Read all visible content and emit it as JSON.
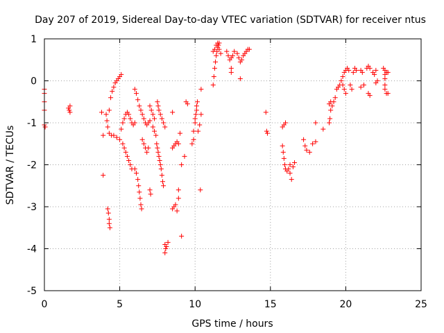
{
  "chart_data": {
    "type": "scatter",
    "title": "Day 207 of 2019, Sidereal Day-to-day VTEC variation (SDTVAR) for receiver ntus",
    "xlabel": "GPS time / hours",
    "ylabel": "SDTVAR / TECUs",
    "xlim": [
      0,
      25
    ],
    "ylim": [
      -5,
      1
    ],
    "xticks": [
      0,
      5,
      10,
      15,
      20,
      25
    ],
    "yticks": [
      -5,
      -4,
      -3,
      -2,
      -1,
      0,
      1
    ],
    "grid": true,
    "marker": "+",
    "color": "#ff0000",
    "series": [
      {
        "name": "SDTVAR",
        "points": [
          [
            0.0,
            -0.2
          ],
          [
            0.0,
            -0.3
          ],
          [
            0.0,
            -0.5
          ],
          [
            0.0,
            -0.7
          ],
          [
            0.0,
            -1.05
          ],
          [
            0.05,
            -1.1
          ],
          [
            1.6,
            -0.65
          ],
          [
            1.65,
            -0.7
          ],
          [
            1.7,
            -0.6
          ],
          [
            1.7,
            -0.75
          ],
          [
            3.8,
            -0.75
          ],
          [
            3.9,
            -1.3
          ],
          [
            3.9,
            -2.25
          ],
          [
            4.2,
            -3.05
          ],
          [
            4.25,
            -3.15
          ],
          [
            4.3,
            -3.3
          ],
          [
            4.3,
            -3.4
          ],
          [
            4.35,
            -3.5
          ],
          [
            4.1,
            -0.8
          ],
          [
            4.15,
            -0.95
          ],
          [
            4.2,
            -1.1
          ],
          [
            4.3,
            -1.25
          ],
          [
            4.45,
            -1.3
          ],
          [
            4.3,
            -0.7
          ],
          [
            4.4,
            -0.4
          ],
          [
            4.5,
            -0.25
          ],
          [
            4.6,
            -0.15
          ],
          [
            4.7,
            -0.05
          ],
          [
            4.8,
            0.0
          ],
          [
            4.9,
            0.05
          ],
          [
            5.0,
            0.1
          ],
          [
            5.1,
            0.15
          ],
          [
            4.6,
            -1.3
          ],
          [
            4.8,
            -1.35
          ],
          [
            5.0,
            -1.4
          ],
          [
            5.2,
            -1.5
          ],
          [
            5.3,
            -1.6
          ],
          [
            5.4,
            -1.7
          ],
          [
            5.5,
            -1.8
          ],
          [
            5.6,
            -1.9
          ],
          [
            5.7,
            -2.0
          ],
          [
            5.8,
            -2.1
          ],
          [
            6.0,
            -2.1
          ],
          [
            6.1,
            -2.2
          ],
          [
            6.2,
            -2.35
          ],
          [
            6.25,
            -2.5
          ],
          [
            6.3,
            -2.65
          ],
          [
            6.35,
            -2.8
          ],
          [
            6.4,
            -2.95
          ],
          [
            6.45,
            -3.05
          ],
          [
            5.1,
            -1.15
          ],
          [
            5.2,
            -1.0
          ],
          [
            5.3,
            -0.9
          ],
          [
            5.4,
            -0.8
          ],
          [
            5.5,
            -0.75
          ],
          [
            5.6,
            -0.8
          ],
          [
            5.7,
            -0.9
          ],
          [
            5.8,
            -1.0
          ],
          [
            5.9,
            -1.05
          ],
          [
            6.0,
            -1.0
          ],
          [
            6.0,
            -0.2
          ],
          [
            6.1,
            -0.3
          ],
          [
            6.2,
            -0.45
          ],
          [
            6.3,
            -0.6
          ],
          [
            6.4,
            -0.7
          ],
          [
            6.5,
            -0.8
          ],
          [
            6.6,
            -0.9
          ],
          [
            6.7,
            -1.0
          ],
          [
            6.8,
            -1.05
          ],
          [
            6.9,
            -1.0
          ],
          [
            7.0,
            -0.95
          ],
          [
            6.5,
            -1.4
          ],
          [
            6.6,
            -1.5
          ],
          [
            6.7,
            -1.6
          ],
          [
            6.8,
            -1.7
          ],
          [
            6.9,
            -1.6
          ],
          [
            7.0,
            -2.6
          ],
          [
            7.05,
            -2.7
          ],
          [
            7.0,
            -0.6
          ],
          [
            7.1,
            -0.7
          ],
          [
            7.2,
            -0.8
          ],
          [
            7.3,
            -0.9
          ],
          [
            7.2,
            -1.1
          ],
          [
            7.3,
            -1.2
          ],
          [
            7.4,
            -1.3
          ],
          [
            7.45,
            -1.5
          ],
          [
            7.5,
            -1.6
          ],
          [
            7.55,
            -1.7
          ],
          [
            7.6,
            -1.8
          ],
          [
            7.65,
            -1.9
          ],
          [
            7.7,
            -2.0
          ],
          [
            7.75,
            -2.1
          ],
          [
            7.8,
            -2.25
          ],
          [
            7.85,
            -2.4
          ],
          [
            7.9,
            -2.5
          ],
          [
            7.5,
            -0.5
          ],
          [
            7.55,
            -0.6
          ],
          [
            7.6,
            -0.7
          ],
          [
            7.7,
            -0.8
          ],
          [
            7.8,
            -0.9
          ],
          [
            7.9,
            -1.0
          ],
          [
            8.0,
            -1.1
          ],
          [
            8.0,
            -3.9
          ],
          [
            8.05,
            -4.0
          ],
          [
            8.0,
            -4.1
          ],
          [
            8.1,
            -3.95
          ],
          [
            8.2,
            -3.85
          ],
          [
            8.5,
            -3.05
          ],
          [
            8.6,
            -3.0
          ],
          [
            8.7,
            -2.95
          ],
          [
            8.8,
            -3.1
          ],
          [
            8.9,
            -2.8
          ],
          [
            8.9,
            -2.6
          ],
          [
            8.5,
            -1.6
          ],
          [
            8.6,
            -1.55
          ],
          [
            8.7,
            -1.5
          ],
          [
            8.8,
            -1.45
          ],
          [
            8.9,
            -1.5
          ],
          [
            8.5,
            -0.75
          ],
          [
            9.1,
            -3.7
          ],
          [
            9.0,
            -1.25
          ],
          [
            9.1,
            -2.0
          ],
          [
            9.3,
            -1.8
          ],
          [
            9.4,
            -0.5
          ],
          [
            9.5,
            -0.55
          ],
          [
            9.8,
            -1.5
          ],
          [
            9.9,
            -1.4
          ],
          [
            9.9,
            -1.2
          ],
          [
            10.0,
            -1.0
          ],
          [
            10.0,
            -0.9
          ],
          [
            10.05,
            -0.8
          ],
          [
            10.1,
            -0.7
          ],
          [
            10.1,
            -0.6
          ],
          [
            10.15,
            -0.5
          ],
          [
            10.2,
            -1.2
          ],
          [
            10.3,
            -1.05
          ],
          [
            10.4,
            -0.8
          ],
          [
            10.4,
            -0.2
          ],
          [
            10.35,
            -2.6
          ],
          [
            11.2,
            -0.1
          ],
          [
            11.25,
            0.1
          ],
          [
            11.3,
            0.3
          ],
          [
            11.35,
            0.45
          ],
          [
            11.4,
            0.6
          ],
          [
            11.45,
            0.7
          ],
          [
            11.5,
            0.8
          ],
          [
            11.55,
            0.85
          ],
          [
            11.6,
            0.9
          ],
          [
            11.2,
            0.7
          ],
          [
            11.3,
            0.75
          ],
          [
            11.4,
            0.85
          ],
          [
            11.5,
            0.9
          ],
          [
            11.6,
            0.75
          ],
          [
            11.7,
            0.65
          ],
          [
            12.1,
            0.7
          ],
          [
            12.2,
            0.6
          ],
          [
            12.3,
            0.5
          ],
          [
            12.4,
            0.55
          ],
          [
            12.5,
            0.6
          ],
          [
            12.6,
            0.7
          ],
          [
            12.4,
            0.3
          ],
          [
            12.4,
            0.2
          ],
          [
            12.8,
            0.65
          ],
          [
            12.9,
            0.55
          ],
          [
            13.0,
            0.45
          ],
          [
            13.1,
            0.5
          ],
          [
            13.2,
            0.6
          ],
          [
            13.3,
            0.65
          ],
          [
            13.4,
            0.7
          ],
          [
            13.5,
            0.75
          ],
          [
            13.6,
            0.75
          ],
          [
            13.0,
            0.05
          ],
          [
            14.7,
            -0.75
          ],
          [
            14.75,
            -1.2
          ],
          [
            14.8,
            -1.25
          ],
          [
            15.8,
            -1.1
          ],
          [
            15.9,
            -1.05
          ],
          [
            16.0,
            -1.0
          ],
          [
            15.8,
            -1.55
          ],
          [
            15.85,
            -1.7
          ],
          [
            15.9,
            -1.85
          ],
          [
            15.95,
            -2.0
          ],
          [
            16.0,
            -2.1
          ],
          [
            16.1,
            -2.15
          ],
          [
            16.2,
            -2.1
          ],
          [
            16.3,
            -2.0
          ],
          [
            16.3,
            -2.2
          ],
          [
            16.4,
            -2.35
          ],
          [
            16.5,
            -2.05
          ],
          [
            16.6,
            -1.95
          ],
          [
            17.2,
            -1.4
          ],
          [
            17.3,
            -1.55
          ],
          [
            17.4,
            -1.65
          ],
          [
            17.6,
            -1.7
          ],
          [
            17.8,
            -1.5
          ],
          [
            18.0,
            -1.45
          ],
          [
            18.0,
            -1.0
          ],
          [
            18.5,
            -1.15
          ],
          [
            18.9,
            -1.0
          ],
          [
            18.95,
            -0.9
          ],
          [
            19.0,
            -0.7
          ],
          [
            19.1,
            -0.6
          ],
          [
            19.2,
            -0.5
          ],
          [
            19.3,
            -0.4
          ],
          [
            18.9,
            -0.55
          ],
          [
            19.0,
            -0.5
          ],
          [
            19.4,
            -0.2
          ],
          [
            19.5,
            -0.15
          ],
          [
            19.6,
            -0.1
          ],
          [
            19.7,
            0.0
          ],
          [
            19.8,
            0.1
          ],
          [
            19.9,
            0.2
          ],
          [
            20.0,
            0.25
          ],
          [
            20.1,
            0.3
          ],
          [
            20.2,
            0.25
          ],
          [
            19.8,
            -0.1
          ],
          [
            19.9,
            -0.2
          ],
          [
            20.0,
            -0.3
          ],
          [
            20.3,
            -0.1
          ],
          [
            20.4,
            -0.2
          ],
          [
            20.5,
            0.2
          ],
          [
            20.6,
            0.3
          ],
          [
            20.7,
            0.25
          ],
          [
            21.0,
            0.25
          ],
          [
            21.1,
            0.2
          ],
          [
            21.0,
            -0.15
          ],
          [
            21.2,
            -0.1
          ],
          [
            21.4,
            0.3
          ],
          [
            21.5,
            0.35
          ],
          [
            21.6,
            0.3
          ],
          [
            21.5,
            -0.3
          ],
          [
            21.6,
            -0.35
          ],
          [
            21.8,
            0.2
          ],
          [
            21.9,
            0.15
          ],
          [
            22.0,
            -0.05
          ],
          [
            22.1,
            0.0
          ],
          [
            22.0,
            0.25
          ],
          [
            22.5,
            0.3
          ],
          [
            22.6,
            0.25
          ],
          [
            22.7,
            0.2
          ],
          [
            22.6,
            0.15
          ],
          [
            22.6,
            0.05
          ],
          [
            22.6,
            -0.1
          ],
          [
            22.6,
            -0.2
          ],
          [
            22.7,
            -0.3
          ],
          [
            22.8,
            -0.3
          ],
          [
            22.8,
            0.2
          ]
        ]
      }
    ]
  }
}
